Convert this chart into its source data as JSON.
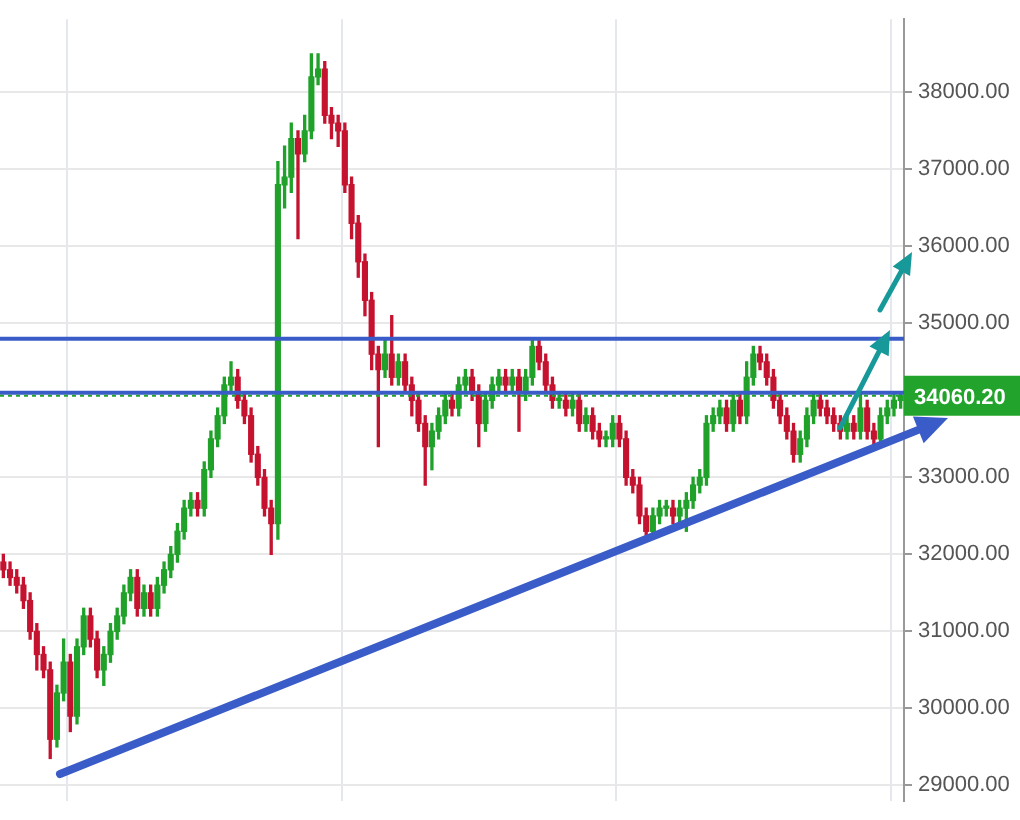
{
  "chart_data": {
    "type": "candlestick",
    "categories": [
      null,
      null,
      null,
      null,
      null,
      null,
      null,
      null,
      null,
      null,
      null,
      null,
      null,
      null,
      null,
      null,
      null,
      null,
      null,
      null,
      null,
      null,
      null,
      null,
      null,
      null,
      null,
      null,
      null,
      null,
      null,
      null,
      null,
      null,
      null,
      null,
      null,
      null,
      null,
      null,
      null,
      null,
      null,
      null,
      null,
      null,
      null,
      null,
      null,
      null,
      null,
      null,
      null,
      null,
      null,
      null,
      null,
      null,
      null,
      null,
      null,
      null,
      null,
      null,
      null,
      null,
      null,
      null,
      null,
      null,
      null,
      null,
      null,
      null,
      null,
      null,
      null,
      null,
      null,
      null,
      null,
      null,
      null,
      null,
      null,
      null,
      null,
      null,
      null,
      null,
      null,
      null,
      null,
      null,
      null,
      null,
      null,
      null,
      null,
      null,
      null,
      null,
      null,
      null,
      null,
      null,
      null,
      null,
      null,
      null,
      null,
      null,
      null,
      null,
      null,
      null,
      null,
      null,
      null,
      null,
      null,
      null,
      null,
      null,
      null,
      null,
      null,
      null,
      null,
      null,
      null,
      null,
      null,
      null,
      null
    ],
    "ohlc": [
      [
        31900,
        32000,
        31700,
        31800
      ],
      [
        31800,
        31900,
        31600,
        31700
      ],
      [
        31700,
        31800,
        31500,
        31600
      ],
      [
        31600,
        31700,
        31300,
        31400
      ],
      [
        31400,
        31500,
        30900,
        31000
      ],
      [
        31000,
        31100,
        30500,
        30700
      ],
      [
        30700,
        30800,
        30400,
        30500
      ],
      [
        30500,
        30600,
        29350,
        29600
      ],
      [
        29600,
        30300,
        29500,
        30200
      ],
      [
        30200,
        30900,
        30100,
        30600
      ],
      [
        30600,
        30700,
        29700,
        29900
      ],
      [
        29900,
        30900,
        29800,
        30800
      ],
      [
        30800,
        31300,
        30700,
        31200
      ],
      [
        31200,
        31300,
        30800,
        30900
      ],
      [
        30900,
        31000,
        30400,
        30500
      ],
      [
        30500,
        30800,
        30300,
        30700
      ],
      [
        30700,
        31100,
        30600,
        31000
      ],
      [
        31000,
        31300,
        30900,
        31200
      ],
      [
        31200,
        31600,
        31100,
        31500
      ],
      [
        31500,
        31800,
        31400,
        31700
      ],
      [
        31700,
        31800,
        31200,
        31300
      ],
      [
        31300,
        31600,
        31200,
        31500
      ],
      [
        31500,
        31600,
        31200,
        31300
      ],
      [
        31300,
        31700,
        31200,
        31600
      ],
      [
        31600,
        31900,
        31500,
        31800
      ],
      [
        31800,
        32100,
        31700,
        32000
      ],
      [
        32000,
        32400,
        31900,
        32300
      ],
      [
        32300,
        32700,
        32200,
        32600
      ],
      [
        32600,
        32800,
        32500,
        32700
      ],
      [
        32700,
        32800,
        32500,
        32600
      ],
      [
        32600,
        33200,
        32500,
        33100
      ],
      [
        33100,
        33600,
        33000,
        33500
      ],
      [
        33500,
        33900,
        33400,
        33800
      ],
      [
        33800,
        34300,
        33700,
        34200
      ],
      [
        34200,
        34500,
        34100,
        34300
      ],
      [
        34300,
        34400,
        33900,
        34000
      ],
      [
        34000,
        34100,
        33700,
        33800
      ],
      [
        33800,
        33900,
        33200,
        33300
      ],
      [
        33300,
        33400,
        32900,
        33000
      ],
      [
        33000,
        33100,
        32500,
        32600
      ],
      [
        32600,
        32700,
        32000,
        32400
      ],
      [
        32400,
        37100,
        32200,
        36800
      ],
      [
        36800,
        37300,
        36500,
        36900
      ],
      [
        36900,
        37600,
        36700,
        37400
      ],
      [
        37400,
        37500,
        36100,
        37200
      ],
      [
        37200,
        37700,
        37100,
        37500
      ],
      [
        37500,
        38500,
        37400,
        38200
      ],
      [
        38200,
        38500,
        38100,
        38300
      ],
      [
        38300,
        38400,
        37600,
        37700
      ],
      [
        37700,
        37800,
        37400,
        37600
      ],
      [
        37600,
        37700,
        37300,
        37500
      ],
      [
        37500,
        37600,
        36700,
        36800
      ],
      [
        36800,
        36900,
        36100,
        36300
      ],
      [
        36300,
        36400,
        35600,
        35800
      ],
      [
        35800,
        35900,
        35100,
        35300
      ],
      [
        35300,
        35400,
        34400,
        34600
      ],
      [
        34600,
        34700,
        33400,
        34400
      ],
      [
        34400,
        34800,
        34300,
        34600
      ],
      [
        34600,
        35100,
        34200,
        34300
      ],
      [
        34300,
        34600,
        34200,
        34500
      ],
      [
        34500,
        34600,
        34100,
        34200
      ],
      [
        34200,
        34300,
        33800,
        34000
      ],
      [
        34000,
        34100,
        33600,
        33700
      ],
      [
        33700,
        33800,
        32900,
        33400
      ],
      [
        33400,
        33700,
        33100,
        33600
      ],
      [
        33600,
        33900,
        33500,
        33800
      ],
      [
        33800,
        34100,
        33700,
        34000
      ],
      [
        34000,
        34100,
        33800,
        33900
      ],
      [
        33900,
        34300,
        33800,
        34200
      ],
      [
        34200,
        34400,
        34100,
        34300
      ],
      [
        34300,
        34400,
        34000,
        34100
      ],
      [
        34100,
        34200,
        33400,
        33700
      ],
      [
        33700,
        34100,
        33600,
        34000
      ],
      [
        34000,
        34300,
        33900,
        34200
      ],
      [
        34200,
        34400,
        34100,
        34300
      ],
      [
        34300,
        34400,
        34100,
        34200
      ],
      [
        34200,
        34400,
        34100,
        34300
      ],
      [
        34300,
        34400,
        33600,
        34100
      ],
      [
        34100,
        34400,
        34000,
        34300
      ],
      [
        34300,
        34800,
        34200,
        34700
      ],
      [
        34700,
        34800,
        34400,
        34500
      ],
      [
        34500,
        34600,
        34100,
        34200
      ],
      [
        34200,
        34300,
        33900,
        34000
      ],
      [
        34000,
        34100,
        33900,
        34000
      ],
      [
        34000,
        34100,
        33800,
        33900
      ],
      [
        33900,
        34100,
        33800,
        34000
      ],
      [
        34000,
        34100,
        33600,
        33700
      ],
      [
        33700,
        33900,
        33600,
        33800
      ],
      [
        33800,
        33900,
        33500,
        33600
      ],
      [
        33600,
        33700,
        33400,
        33500
      ],
      [
        33500,
        33600,
        33400,
        33500
      ],
      [
        33500,
        33800,
        33400,
        33700
      ],
      [
        33700,
        33800,
        33400,
        33500
      ],
      [
        33500,
        33600,
        32900,
        33000
      ],
      [
        33000,
        33100,
        32800,
        32900
      ],
      [
        32900,
        33000,
        32400,
        32500
      ],
      [
        32500,
        32600,
        32200,
        32300
      ],
      [
        32300,
        32600,
        32200,
        32500
      ],
      [
        32500,
        32700,
        32400,
        32600
      ],
      [
        32600,
        32700,
        32500,
        32600
      ],
      [
        32600,
        32700,
        32400,
        32500
      ],
      [
        32500,
        32700,
        32400,
        32600
      ],
      [
        32600,
        32800,
        32300,
        32700
      ],
      [
        32700,
        33000,
        32600,
        32900
      ],
      [
        32900,
        33100,
        32800,
        33000
      ],
      [
        33000,
        33800,
        32900,
        33700
      ],
      [
        33700,
        33900,
        33600,
        33800
      ],
      [
        33800,
        34000,
        33700,
        33900
      ],
      [
        33900,
        34000,
        33600,
        33700
      ],
      [
        33700,
        34100,
        33600,
        34000
      ],
      [
        34000,
        34100,
        33700,
        33800
      ],
      [
        33800,
        34500,
        33700,
        34300
      ],
      [
        34300,
        34700,
        34200,
        34600
      ],
      [
        34600,
        34700,
        34400,
        34500
      ],
      [
        34500,
        34600,
        34200,
        34300
      ],
      [
        34300,
        34400,
        33900,
        34000
      ],
      [
        34000,
        34100,
        33700,
        33800
      ],
      [
        33800,
        33900,
        33500,
        33600
      ],
      [
        33600,
        33700,
        33200,
        33300
      ],
      [
        33300,
        33600,
        33200,
        33500
      ],
      [
        33500,
        33900,
        33400,
        33800
      ],
      [
        33800,
        34100,
        33700,
        34000
      ],
      [
        34000,
        34100,
        33800,
        33900
      ],
      [
        33900,
        34000,
        33700,
        33800
      ],
      [
        33800,
        33900,
        33600,
        33700
      ],
      [
        33700,
        33800,
        33500,
        33600
      ],
      [
        33600,
        33800,
        33500,
        33700
      ],
      [
        33700,
        33800,
        33500,
        33600
      ],
      [
        33600,
        34100,
        33500,
        33900
      ],
      [
        33900,
        34000,
        33500,
        33600
      ],
      [
        33600,
        33700,
        33400,
        33500
      ],
      [
        33500,
        33900,
        33400,
        33800
      ],
      [
        33800,
        34000,
        33700,
        33900
      ],
      [
        33900,
        34100,
        33800,
        34000
      ],
      [
        34000,
        34100,
        33900,
        34060.2
      ]
    ],
    "colors": [
      "#c4122f",
      "#c4122f",
      "#c4122f",
      "#c4122f",
      "#c4122f",
      "#c4122f",
      "#c4122f",
      "#c4122f",
      "#1fa12a",
      "#1fa12a",
      "#c4122f",
      "#1fa12a",
      "#1fa12a",
      "#c4122f",
      "#c4122f",
      "#1fa12a",
      "#1fa12a",
      "#1fa12a",
      "#1fa12a",
      "#1fa12a",
      "#c4122f",
      "#1fa12a",
      "#c4122f",
      "#1fa12a",
      "#1fa12a",
      "#1fa12a",
      "#1fa12a",
      "#1fa12a",
      "#1fa12a",
      "#c4122f",
      "#1fa12a",
      "#1fa12a",
      "#1fa12a",
      "#1fa12a",
      "#1fa12a",
      "#c4122f",
      "#c4122f",
      "#c4122f",
      "#c4122f",
      "#c4122f",
      "#c4122f",
      "#1fa12a",
      "#1fa12a",
      "#1fa12a",
      "#c4122f",
      "#1fa12a",
      "#1fa12a",
      "#1fa12a",
      "#c4122f",
      "#c4122f",
      "#c4122f",
      "#c4122f",
      "#c4122f",
      "#c4122f",
      "#c4122f",
      "#c4122f",
      "#c4122f",
      "#1fa12a",
      "#c4122f",
      "#1fa12a",
      "#c4122f",
      "#c4122f",
      "#c4122f",
      "#c4122f",
      "#1fa12a",
      "#1fa12a",
      "#1fa12a",
      "#c4122f",
      "#1fa12a",
      "#1fa12a",
      "#c4122f",
      "#c4122f",
      "#1fa12a",
      "#1fa12a",
      "#1fa12a",
      "#c4122f",
      "#1fa12a",
      "#c4122f",
      "#1fa12a",
      "#1fa12a",
      "#c4122f",
      "#c4122f",
      "#c4122f",
      "#1fa12a",
      "#c4122f",
      "#1fa12a",
      "#c4122f",
      "#1fa12a",
      "#c4122f",
      "#c4122f",
      "#1fa12a",
      "#1fa12a",
      "#c4122f",
      "#c4122f",
      "#c4122f",
      "#c4122f",
      "#c4122f",
      "#1fa12a",
      "#1fa12a",
      "#1fa12a",
      "#c4122f",
      "#1fa12a",
      "#1fa12a",
      "#1fa12a",
      "#1fa12a",
      "#1fa12a",
      "#1fa12a",
      "#1fa12a",
      "#c4122f",
      "#1fa12a",
      "#c4122f",
      "#1fa12a",
      "#1fa12a",
      "#c4122f",
      "#c4122f",
      "#c4122f",
      "#c4122f",
      "#c4122f",
      "#c4122f",
      "#1fa12a",
      "#1fa12a",
      "#1fa12a",
      "#c4122f",
      "#c4122f",
      "#c4122f",
      "#c4122f",
      "#1fa12a",
      "#c4122f",
      "#1fa12a",
      "#c4122f",
      "#c4122f",
      "#1fa12a",
      "#1fa12a",
      "#1fa12a",
      "#1fa12a"
    ],
    "ylim": [
      28800,
      38950
    ],
    "yticks": [
      {
        "value": 29000,
        "label": "29000.00"
      },
      {
        "value": 30000,
        "label": "30000.00"
      },
      {
        "value": 31000,
        "label": "31000.00"
      },
      {
        "value": 32000,
        "label": "32000.00"
      },
      {
        "value": 33000,
        "label": "33000.00"
      },
      {
        "value": 35000,
        "label": "35000.00"
      },
      {
        "value": 36000,
        "label": "36000.00"
      },
      {
        "value": 37000,
        "label": "37000.00"
      },
      {
        "value": 38000,
        "label": "38000.00"
      }
    ],
    "ref_lines": [
      {
        "axis": "y",
        "value": 34800,
        "color": "#3a5cc8",
        "line_style": "solid"
      },
      {
        "axis": "y",
        "value": 34100,
        "color": "#3a5cc8",
        "line_style": "solid"
      },
      {
        "axis": "y",
        "value": 34060.2,
        "label": "34060.20",
        "color": "#22a32b",
        "line_style": "dotted"
      }
    ],
    "grid": true,
    "tick_labels": "y",
    "legend": false
  }
}
